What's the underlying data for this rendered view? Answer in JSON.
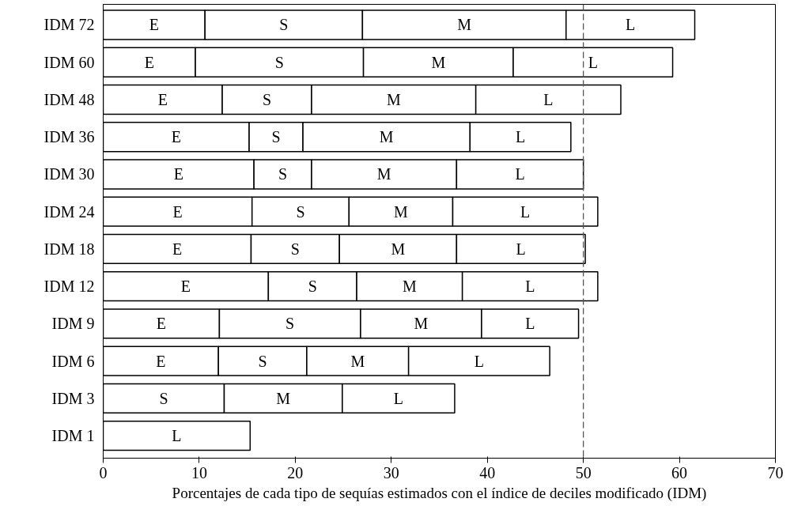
{
  "chart_data": {
    "type": "bar",
    "orientation": "horizontal",
    "stacked": true,
    "xlabel": "Porcentajes de cada tipo de sequías estimados con el índice de deciles modificado (IDM)",
    "categories": [
      "IDM 72",
      "IDM 60",
      "IDM 48",
      "IDM 36",
      "IDM 30",
      "IDM 24",
      "IDM 18",
      "IDM 12",
      "IDM 9",
      "IDM 6",
      "IDM 3",
      "IDM 1"
    ],
    "series": [
      {
        "name": "E",
        "color": "#ffffff",
        "values": [
          10.6,
          9.6,
          12.4,
          15.2,
          15.7,
          15.5,
          15.4,
          17.2,
          12.1,
          12.0,
          null,
          null
        ]
      },
      {
        "name": "S",
        "color": "#ffffff",
        "values": [
          16.4,
          17.5,
          9.3,
          5.6,
          6.0,
          10.1,
          9.2,
          9.2,
          14.7,
          9.2,
          12.6,
          null
        ]
      },
      {
        "name": "M",
        "color": "#ffffff",
        "values": [
          21.2,
          15.6,
          17.1,
          17.4,
          15.1,
          10.8,
          12.2,
          11.0,
          12.6,
          10.6,
          12.3,
          null
        ]
      },
      {
        "name": "L",
        "color": "#ffffff",
        "values": [
          13.4,
          16.6,
          15.1,
          10.5,
          13.2,
          15.1,
          13.4,
          14.1,
          10.1,
          14.7,
          11.7,
          15.3
        ]
      }
    ],
    "xlim": [
      0,
      70
    ],
    "xticks": [
      0,
      10,
      20,
      30,
      40,
      50,
      60,
      70
    ],
    "ref_lines": [
      {
        "axis": "x",
        "value": 50,
        "line_style": "dashed",
        "color": "#555555"
      }
    ],
    "grid": false
  }
}
